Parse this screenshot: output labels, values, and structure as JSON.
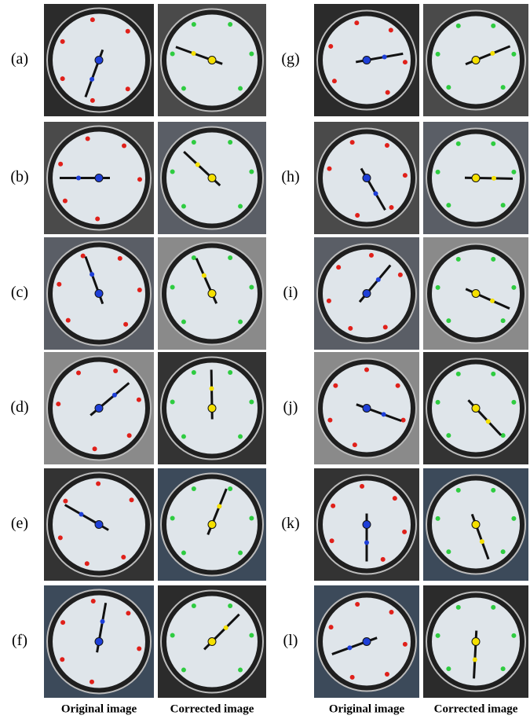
{
  "panels": [
    {
      "label": "(a)"
    },
    {
      "label": "(b)"
    },
    {
      "label": "(c)"
    },
    {
      "label": "(d)"
    },
    {
      "label": "(e)"
    },
    {
      "label": "(f)"
    },
    {
      "label": "(g)"
    },
    {
      "label": "(h)"
    },
    {
      "label": "(i)"
    },
    {
      "label": "(j)"
    },
    {
      "label": "(k)"
    },
    {
      "label": "(l)"
    }
  ],
  "captions": [
    "Original image",
    "Corrected image",
    "Original image",
    "Corrected image"
  ]
}
